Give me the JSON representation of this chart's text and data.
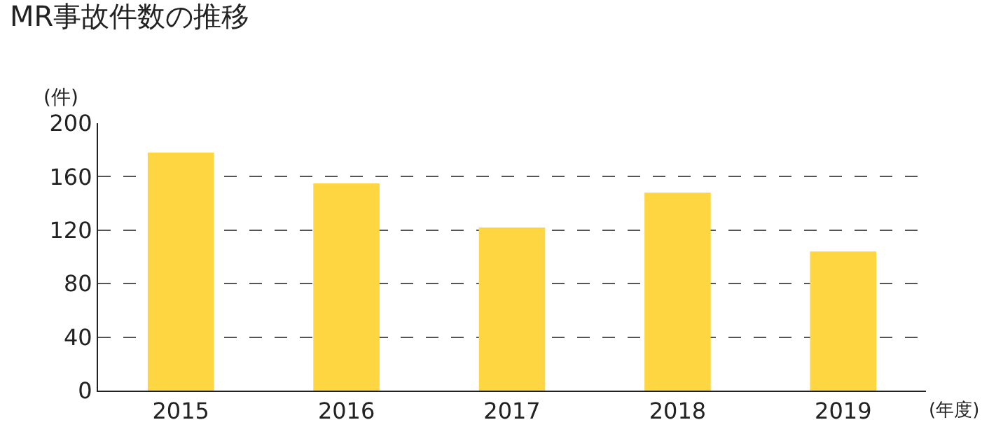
{
  "chart_data": {
    "type": "bar",
    "title": "MR事故件数の推移",
    "ylabel": "(件)",
    "xlabel": "(年度)",
    "categories": [
      "2015",
      "2016",
      "2017",
      "2018",
      "2019"
    ],
    "values": [
      178,
      155,
      122,
      148,
      104
    ],
    "color": "#fdd642",
    "ylim": [
      0,
      200
    ],
    "yticks": [
      0,
      40,
      80,
      120,
      160,
      200
    ],
    "grid": "y"
  }
}
